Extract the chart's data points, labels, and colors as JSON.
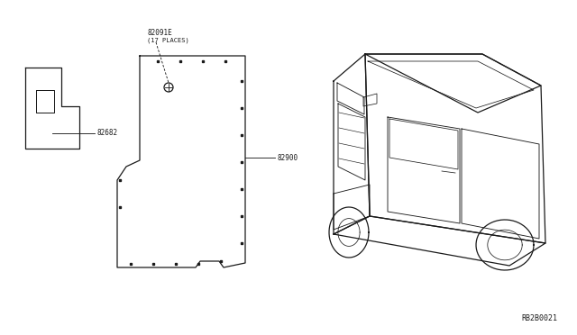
{
  "bg_color": "#ffffff",
  "line_color": "#1a1a1a",
  "text_color": "#1a1a1a",
  "fig_width": 6.4,
  "fig_height": 3.72,
  "dpi": 100,
  "diagram_id": "RB2B0021",
  "part_numbers": {
    "screw": "82091E",
    "screw_note": "(17 PLACES)",
    "panel": "82900",
    "bracket": "82682"
  }
}
